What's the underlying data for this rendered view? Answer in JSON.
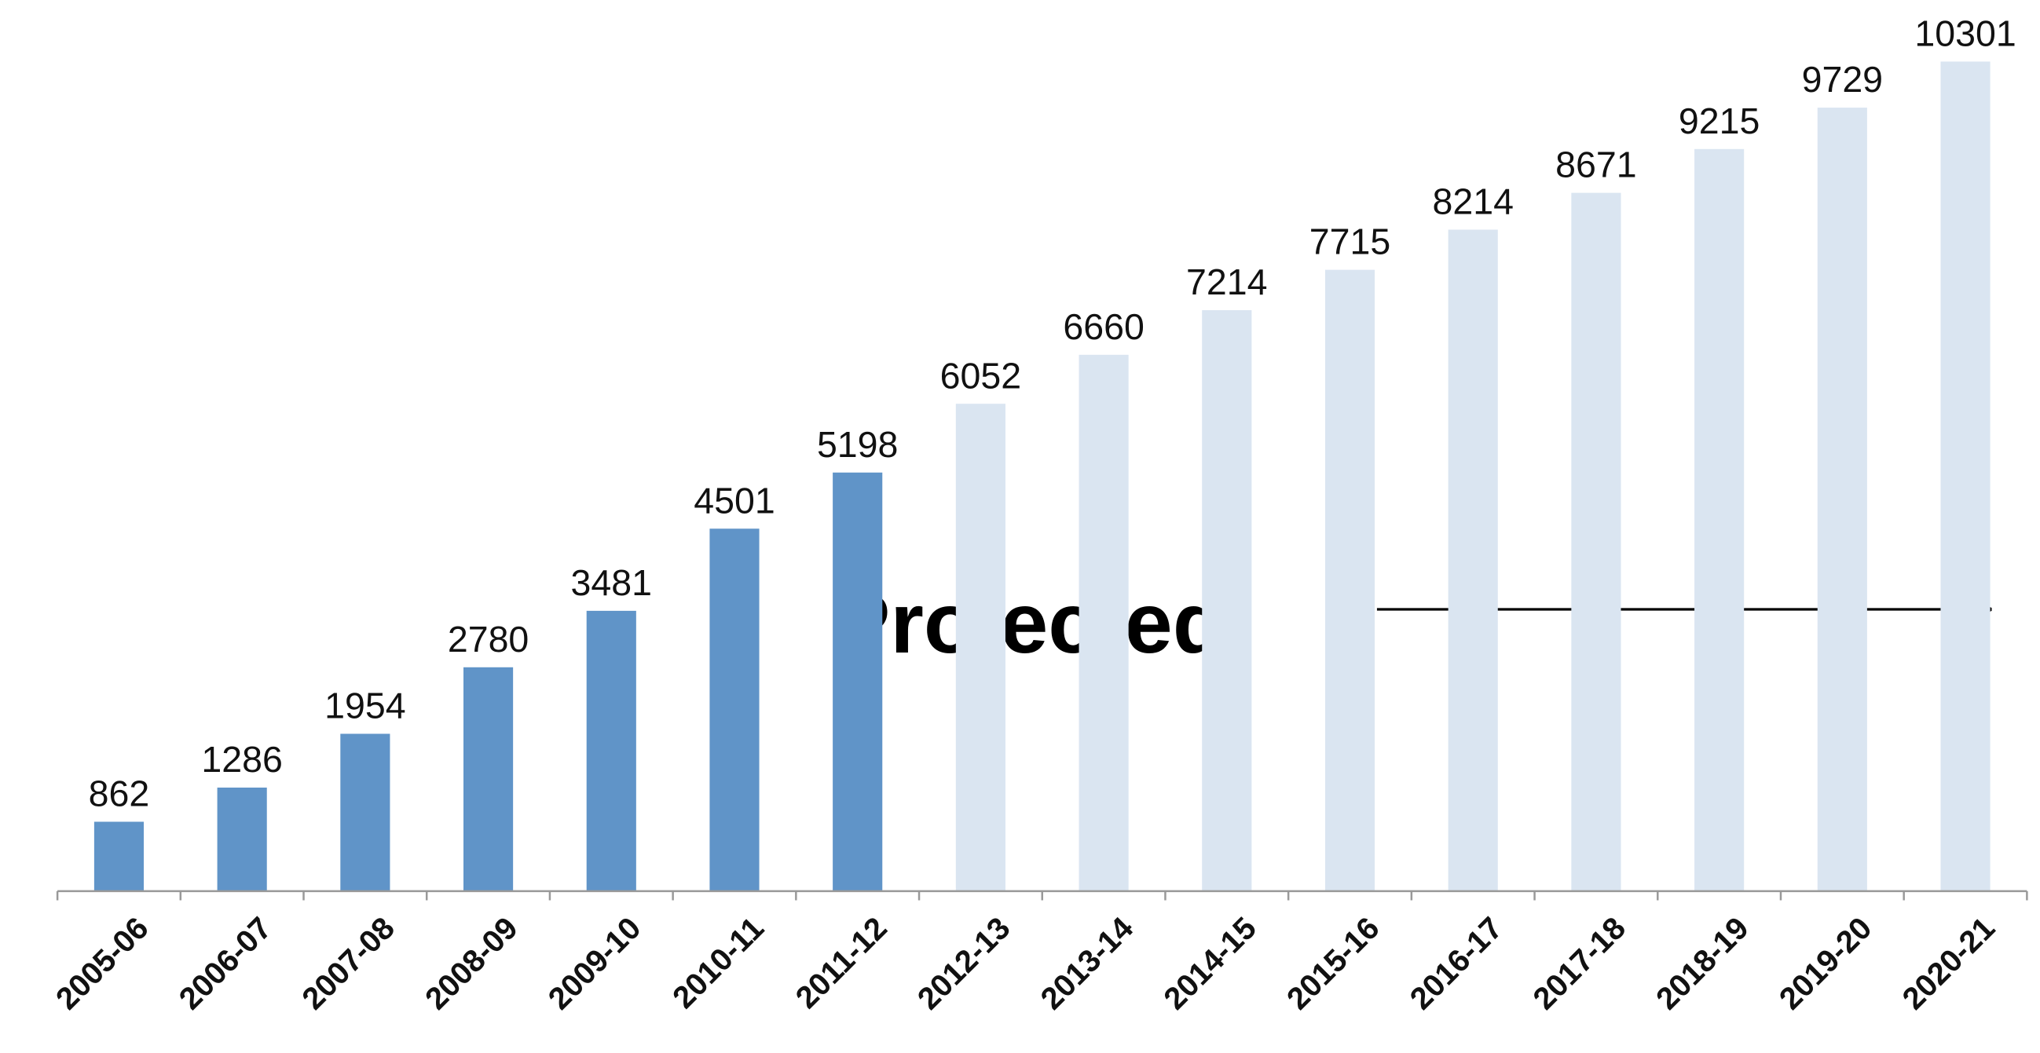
{
  "chart_data": {
    "type": "bar",
    "categories": [
      "2005-06",
      "2006-07",
      "2007-08",
      "2008-09",
      "2009-10",
      "2010-11",
      "2011-12",
      "2012-13",
      "2013-14",
      "2014-15",
      "2015-16",
      "2016-17",
      "2017-18",
      "2018-19",
      "2019-20",
      "2020-21"
    ],
    "values": [
      862,
      1286,
      1954,
      2780,
      3481,
      4501,
      5198,
      6052,
      6660,
      7214,
      7715,
      8214,
      8671,
      9215,
      9729,
      10301
    ],
    "colors": [
      "#6094c8",
      "#6094c8",
      "#6094c8",
      "#6094c8",
      "#6094c8",
      "#6094c8",
      "#6094c8",
      "#dae5f1",
      "#dae5f1",
      "#dae5f1",
      "#dae5f1",
      "#dae5f1",
      "#dae5f1",
      "#dae5f1",
      "#dae5f1",
      "#dae5f1"
    ],
    "ylim": [
      0,
      11000
    ],
    "annotation": "Projected"
  }
}
